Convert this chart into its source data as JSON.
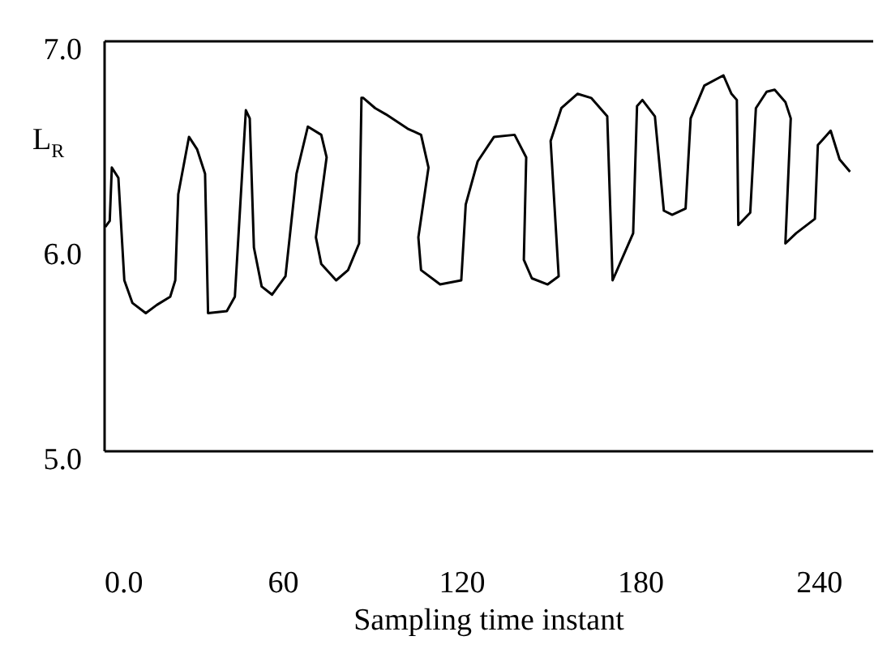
{
  "chart_data": {
    "type": "line",
    "xlabel": "Sampling time instant",
    "ylabel": "L$_{R}$",
    "x": [
      0.5,
      2,
      2.7,
      4.9,
      6.9,
      9.6,
      14.1,
      17.8,
      22.3,
      24,
      25,
      28.6,
      31.3,
      34,
      35,
      41.3,
      44,
      47.7,
      49,
      50.4,
      53,
      56.5,
      61,
      64.7,
      68.5,
      73,
      74.8,
      71.2,
      73,
      78,
      82,
      85.7,
      86.5,
      87.1,
      91.1,
      94.7,
      102,
      106.5,
      109,
      105.6,
      106.5,
      112.9,
      120,
      121.5,
      125.5,
      131,
      137.9,
      141.8,
      141,
      143.7,
      149,
      152.7,
      150,
      153.6,
      159,
      163.6,
      169,
      170.8,
      177.7,
      179,
      180.8,
      185,
      188,
      190.8,
      195.3,
      197,
      201.6,
      208,
      210.7,
      212.5,
      213,
      217,
      218.9,
      222.5,
      225.2,
      228.8,
      230.6,
      228.8,
      232.4,
      238.7,
      239.7,
      244,
      247,
      250.5
    ],
    "series": [
      {
        "color": "#000000",
        "values": [
          6.09,
          6.12,
          6.38,
          6.33,
          5.83,
          5.72,
          5.67,
          5.71,
          5.75,
          5.83,
          6.25,
          6.53,
          6.47,
          6.35,
          5.67,
          5.68,
          5.75,
          6.66,
          6.62,
          5.99,
          5.8,
          5.76,
          5.85,
          6.35,
          6.58,
          6.54,
          6.43,
          6.04,
          5.91,
          5.83,
          5.88,
          6.01,
          6.72,
          6.72,
          6.67,
          6.64,
          6.57,
          6.54,
          6.38,
          6.04,
          5.88,
          5.81,
          5.83,
          6.2,
          6.41,
          6.53,
          6.54,
          6.43,
          5.93,
          5.84,
          5.81,
          5.85,
          6.51,
          6.67,
          6.74,
          6.72,
          6.63,
          5.83,
          6.06,
          6.68,
          6.71,
          6.63,
          6.17,
          6.15,
          6.18,
          6.62,
          6.78,
          6.83,
          6.74,
          6.71,
          6.1,
          6.16,
          6.67,
          6.75,
          6.76,
          6.7,
          6.62,
          6.01,
          6.06,
          6.13,
          6.49,
          6.56,
          6.42,
          6.36
        ]
      }
    ],
    "xlim": [
      0,
      258
    ],
    "xticks": [
      {
        "value": 0,
        "label": "0.0"
      },
      60,
      120,
      180,
      240
    ],
    "ylim": [
      5,
      7
    ],
    "yticks": [
      {
        "value": 5,
        "label": "5.0"
      },
      {
        "value": 6,
        "label": "6.0"
      },
      {
        "value": 7,
        "label": "7.0"
      }
    ],
    "grid": false,
    "legend": false,
    "marker": "none",
    "line_style": "solid"
  }
}
